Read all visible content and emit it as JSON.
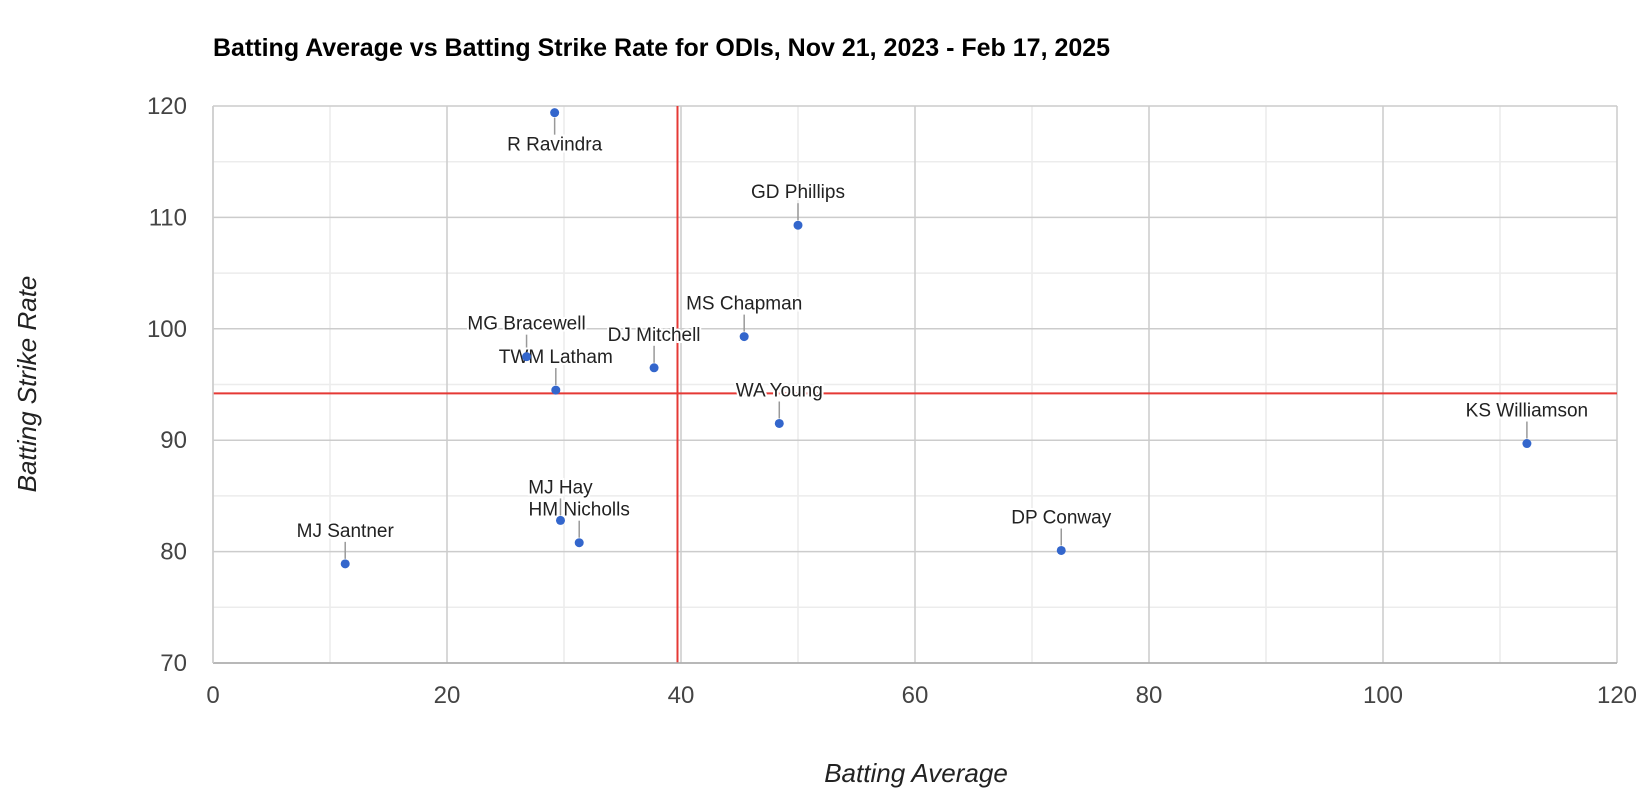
{
  "chart_data": {
    "type": "scatter",
    "title": "Batting Average vs Batting Strike Rate for ODIs, Nov 21, 2023 - Feb 17, 2025",
    "xlabel": "Batting Average",
    "ylabel": "Batting Strike Rate",
    "xlim": [
      0,
      120
    ],
    "ylim": [
      70,
      120
    ],
    "xticks": [
      "0",
      "20",
      "40",
      "60",
      "80",
      "100",
      "120"
    ],
    "yticks": [
      "70",
      "80",
      "90",
      "100",
      "110",
      "120"
    ],
    "grid": true,
    "point_color": "#3366cc",
    "reference_line_color": "#e53935",
    "reference_lines": {
      "x": 39.7,
      "y": 94.2
    },
    "points": [
      {
        "label": "R Ravindra",
        "x": 29.2,
        "y": 119.4,
        "label_pos": "below"
      },
      {
        "label": "GD Phillips",
        "x": 50.0,
        "y": 109.3,
        "label_pos": "above"
      },
      {
        "label": "MS Chapman",
        "x": 45.4,
        "y": 99.3,
        "label_pos": "above"
      },
      {
        "label": "MG Bracewell",
        "x": 26.8,
        "y": 97.5,
        "label_pos": "above"
      },
      {
        "label": "DJ Mitchell",
        "x": 37.7,
        "y": 96.5,
        "label_pos": "above"
      },
      {
        "label": "TWM Latham",
        "x": 29.3,
        "y": 94.5,
        "label_pos": "above"
      },
      {
        "label": "WA Young",
        "x": 48.4,
        "y": 91.5,
        "label_pos": "above"
      },
      {
        "label": "KS Williamson",
        "x": 112.3,
        "y": 89.7,
        "label_pos": "above"
      },
      {
        "label": "MJ Hay",
        "x": 29.7,
        "y": 82.8,
        "label_pos": "above"
      },
      {
        "label": "HM Nicholls",
        "x": 31.3,
        "y": 80.8,
        "label_pos": "above"
      },
      {
        "label": "DP Conway",
        "x": 72.5,
        "y": 80.1,
        "label_pos": "above"
      },
      {
        "label": "MJ Santner",
        "x": 11.3,
        "y": 78.9,
        "label_pos": "above"
      }
    ]
  }
}
